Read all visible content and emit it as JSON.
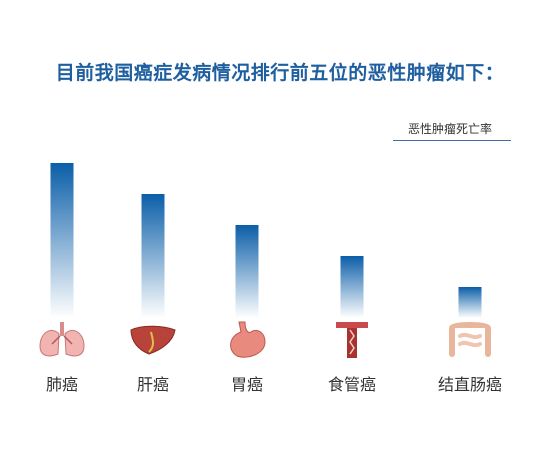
{
  "chart_data": {
    "type": "bar",
    "title": "目前我国癌症发病情况排行前五位的恶性肿瘤如下：",
    "legend": "恶性肿瘤死亡率",
    "categories": [
      "肺癌",
      "肝癌",
      "胃癌",
      "食管癌",
      "结直肠癌"
    ],
    "icons": [
      "lungs-icon",
      "liver-icon",
      "stomach-icon",
      "esophagus-icon",
      "intestine-icon"
    ],
    "values": [
      5,
      4,
      3,
      2,
      1
    ],
    "ylim": [
      0,
      5
    ],
    "grid": false,
    "bar_gradient": [
      "#0a5ea8",
      "#ffffff"
    ]
  }
}
